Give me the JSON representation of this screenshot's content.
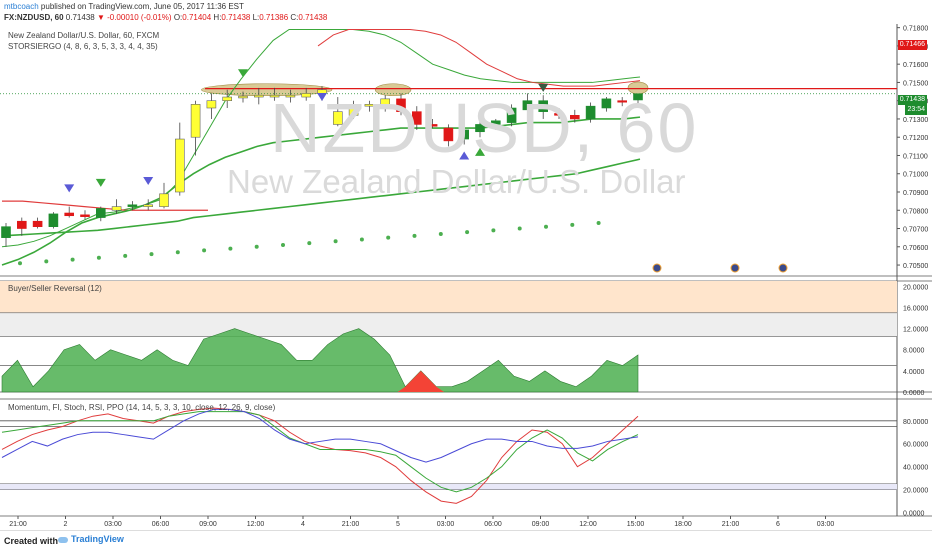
{
  "header": {
    "author": "mtbcoach",
    "published": "published on TradingView.com, June 05, 2017 11:36 EST",
    "symbol": "FX:NZDUSD, 60",
    "last": "0.71438",
    "change": "▼ -0.00010 (-0.01%)",
    "o_label": "O:",
    "o_val": "0.71404",
    "h_label": "H:",
    "h_val": "0.71438",
    "l_label": "L:",
    "l_val": "0.71386",
    "c_label": "C:",
    "c_val": "0.71438"
  },
  "legend": {
    "series": "New Zealand Dollar/U.S. Dollar, 60, FXCM",
    "indicator": "STORSIERGO (4, 8, 6, 3, 5, 3, 3, 4, 4, 35)"
  },
  "watermark": {
    "symbol": "NZDUSD, 60",
    "name": "New Zealand Dollar/U.S. Dollar"
  },
  "panes": {
    "reversal_title": "Buyer/Seller Reversal (12)",
    "momentum_title": "Momentum, FI, Stoch, RSI, PPO (14, 14, 5, 3, 3, 10, close, 12, 26, 9, close)"
  },
  "price_tags": {
    "high": "0.71466",
    "last": "0.71438",
    "timer": "23:54"
  },
  "footer": {
    "created_with": "Created with",
    "brand": "TradingView"
  },
  "colors": {
    "up": "#1e8c2e",
    "down": "#e01818",
    "doji_yellow": "#ffff33",
    "ma_red": "#e03c3c",
    "ma_green": "#3aa83a",
    "dots": "#4caf50",
    "highlight": "#c9b46a",
    "reversal_fill": "#4caf50",
    "reversal_neg": "#f44336",
    "band_orange": "#ffe5cc",
    "band_gray": "#eeeeee"
  },
  "chart_data": [
    {
      "type": "candlestick",
      "title": "",
      "x_ticks": [
        "21:00",
        "2",
        "03:00",
        "06:00",
        "09:00",
        "12:00",
        "4",
        "21:00",
        "5",
        "03:00",
        "06:00",
        "09:00",
        "12:00",
        "15:00",
        "18:00",
        "21:00",
        "6",
        "03:00"
      ],
      "y_ticks": [
        "0.71800",
        "0.71700",
        "0.71600",
        "0.71500",
        "0.71400",
        "0.71300",
        "0.71200",
        "0.71100",
        "0.71000",
        "0.70900",
        "0.70800",
        "0.70700",
        "0.70600",
        "0.70500"
      ],
      "ylim": [
        0.7044,
        0.7182
      ],
      "candles": [
        {
          "o": 0.7065,
          "h": 0.7073,
          "l": 0.706,
          "c": 0.7071,
          "color": "green"
        },
        {
          "o": 0.707,
          "h": 0.7076,
          "l": 0.7066,
          "c": 0.7074,
          "color": "red"
        },
        {
          "o": 0.7074,
          "h": 0.7076,
          "l": 0.707,
          "c": 0.7071,
          "color": "red"
        },
        {
          "o": 0.7071,
          "h": 0.7079,
          "l": 0.707,
          "c": 0.7078,
          "color": "green"
        },
        {
          "o": 0.70785,
          "h": 0.7082,
          "l": 0.7076,
          "c": 0.7077,
          "color": "red"
        },
        {
          "o": 0.70775,
          "h": 0.708,
          "l": 0.7075,
          "c": 0.70765,
          "color": "red"
        },
        {
          "o": 0.7076,
          "h": 0.7082,
          "l": 0.7074,
          "c": 0.7081,
          "color": "green"
        },
        {
          "o": 0.708,
          "h": 0.7086,
          "l": 0.7078,
          "c": 0.7082,
          "color": "yellow"
        },
        {
          "o": 0.7083,
          "h": 0.7085,
          "l": 0.708,
          "c": 0.7082,
          "color": "green"
        },
        {
          "o": 0.7082,
          "h": 0.7086,
          "l": 0.708,
          "c": 0.7083,
          "color": "yellow"
        },
        {
          "o": 0.7082,
          "h": 0.7095,
          "l": 0.7081,
          "c": 0.7089,
          "color": "yellow"
        },
        {
          "o": 0.709,
          "h": 0.7128,
          "l": 0.7088,
          "c": 0.7119,
          "color": "yellow"
        },
        {
          "o": 0.712,
          "h": 0.714,
          "l": 0.711,
          "c": 0.7138,
          "color": "yellow"
        },
        {
          "o": 0.7136,
          "h": 0.7144,
          "l": 0.713,
          "c": 0.714,
          "color": "yellow"
        },
        {
          "o": 0.714,
          "h": 0.7146,
          "l": 0.7136,
          "c": 0.7142,
          "color": "yellow"
        },
        {
          "o": 0.71415,
          "h": 0.7145,
          "l": 0.7139,
          "c": 0.71425,
          "color": "yellow"
        },
        {
          "o": 0.7142,
          "h": 0.7147,
          "l": 0.7138,
          "c": 0.7143,
          "color": "yellow"
        },
        {
          "o": 0.7143,
          "h": 0.7147,
          "l": 0.714,
          "c": 0.7142,
          "color": "yellow"
        },
        {
          "o": 0.7142,
          "h": 0.7146,
          "l": 0.7139,
          "c": 0.7143,
          "color": "yellow"
        },
        {
          "o": 0.7142,
          "h": 0.7147,
          "l": 0.714,
          "c": 0.7144,
          "color": "yellow"
        },
        {
          "o": 0.7144,
          "h": 0.7148,
          "l": 0.714,
          "c": 0.7146,
          "color": "yellow"
        },
        {
          "o": 0.7134,
          "h": 0.7142,
          "l": 0.7126,
          "c": 0.7127,
          "color": "yellow"
        },
        {
          "o": 0.7132,
          "h": 0.714,
          "l": 0.713,
          "c": 0.7137,
          "color": "yellow"
        },
        {
          "o": 0.7137,
          "h": 0.714,
          "l": 0.7134,
          "c": 0.7138,
          "color": "yellow"
        },
        {
          "o": 0.7136,
          "h": 0.7143,
          "l": 0.7134,
          "c": 0.7141,
          "color": "yellow"
        },
        {
          "o": 0.7141,
          "h": 0.7144,
          "l": 0.7132,
          "c": 0.7134,
          "color": "red"
        },
        {
          "o": 0.7134,
          "h": 0.7137,
          "l": 0.7124,
          "c": 0.7127,
          "color": "red"
        },
        {
          "o": 0.7127,
          "h": 0.713,
          "l": 0.7125,
          "c": 0.7126,
          "color": "red"
        },
        {
          "o": 0.7125,
          "h": 0.7127,
          "l": 0.7115,
          "c": 0.7118,
          "color": "red"
        },
        {
          "o": 0.7119,
          "h": 0.7126,
          "l": 0.7116,
          "c": 0.7124,
          "color": "green"
        },
        {
          "o": 0.7123,
          "h": 0.7129,
          "l": 0.712,
          "c": 0.7127,
          "color": "green"
        },
        {
          "o": 0.7127,
          "h": 0.713,
          "l": 0.7124,
          "c": 0.7129,
          "color": "green"
        },
        {
          "o": 0.7128,
          "h": 0.7138,
          "l": 0.7126,
          "c": 0.7136,
          "color": "green"
        },
        {
          "o": 0.7135,
          "h": 0.7144,
          "l": 0.7134,
          "c": 0.714,
          "color": "green"
        },
        {
          "o": 0.714,
          "h": 0.7143,
          "l": 0.713,
          "c": 0.7134,
          "color": "green"
        },
        {
          "o": 0.7133,
          "h": 0.7136,
          "l": 0.713,
          "c": 0.7132,
          "color": "red"
        },
        {
          "o": 0.7132,
          "h": 0.7135,
          "l": 0.7128,
          "c": 0.713,
          "color": "red"
        },
        {
          "o": 0.713,
          "h": 0.7139,
          "l": 0.7128,
          "c": 0.7137,
          "color": "green"
        },
        {
          "o": 0.7136,
          "h": 0.7142,
          "l": 0.7134,
          "c": 0.7141,
          "color": "green"
        },
        {
          "o": 0.714,
          "h": 0.7142,
          "l": 0.7137,
          "c": 0.714,
          "color": "red"
        },
        {
          "o": 0.71404,
          "h": 0.71438,
          "l": 0.71386,
          "c": 0.71438,
          "color": "green"
        }
      ],
      "horizontal_levels": [
        {
          "y": 0.71466,
          "color": "red"
        },
        {
          "y": 0.71438,
          "color": "green",
          "dotted": true
        }
      ],
      "red_ma": [
        0.7085,
        0.7085,
        0.7084,
        0.7083,
        0.7082,
        0.7081,
        0.708,
        0.708,
        0.708,
        0.708,
        0.708,
        0.708,
        0.7081,
        0.7082,
        0.7084,
        0.7088,
        0.7096,
        0.7106,
        0.712,
        0.7134,
        0.715,
        0.7162,
        0.717,
        0.7176,
        0.7179,
        0.7179,
        0.7179,
        0.7179,
        0.7179,
        0.7178,
        0.7176,
        0.7172,
        0.7166,
        0.716,
        0.7156,
        0.7152,
        0.715,
        0.7149,
        0.7148,
        0.7148,
        0.7148,
        0.7149,
        0.715,
        0.7151
      ],
      "upper_band": [
        0.706,
        0.7061,
        0.7063,
        0.7066,
        0.707,
        0.7074,
        0.7078,
        0.7079,
        0.7081,
        0.7083,
        0.7086,
        0.7095,
        0.711,
        0.7125,
        0.714,
        0.7152,
        0.7163,
        0.7173,
        0.7179,
        0.7179,
        0.7179,
        0.7179,
        0.7179,
        0.7178,
        0.7176,
        0.7172,
        0.7166,
        0.716,
        0.7157,
        0.7154,
        0.7152,
        0.7151,
        0.715,
        0.715,
        0.715,
        0.715,
        0.715,
        0.715,
        0.7151,
        0.7152,
        0.7153
      ],
      "mid_band": [
        0.705,
        0.7053,
        0.7057,
        0.7062,
        0.7068,
        0.7073,
        0.7076,
        0.7078,
        0.708,
        0.7083,
        0.7087,
        0.7094,
        0.71,
        0.7105,
        0.7109,
        0.7112,
        0.7115,
        0.7117,
        0.7118,
        0.7119,
        0.712,
        0.7121,
        0.7122,
        0.7123,
        0.7124,
        0.7125,
        0.7125,
        0.7125,
        0.7125,
        0.7125,
        0.7125,
        0.7126,
        0.7127,
        0.7128,
        0.7128,
        0.7128,
        0.7129,
        0.713,
        0.713,
        0.713,
        0.7131
      ],
      "lower_band": [
        0.7066,
        0.70665,
        0.7067,
        0.70675,
        0.7068,
        0.70685,
        0.7069,
        0.707,
        0.7071,
        0.7072,
        0.7073,
        0.7074,
        0.7076,
        0.7077,
        0.7078,
        0.7079,
        0.708,
        0.7081,
        0.7082,
        0.7083,
        0.7084,
        0.7085,
        0.7086,
        0.7087,
        0.7088,
        0.7089,
        0.709,
        0.7091,
        0.7092,
        0.7093,
        0.7094,
        0.7095,
        0.7096,
        0.7097,
        0.7098,
        0.7099,
        0.71,
        0.7102,
        0.7104,
        0.7106,
        0.7108
      ],
      "dots": [
        0.7051,
        0.7052,
        0.7053,
        0.7054,
        0.7055,
        0.7056,
        0.7057,
        0.7058,
        0.7059,
        0.706,
        0.7061,
        0.7062,
        0.7063,
        0.7064,
        0.7065,
        0.7066,
        0.7067,
        0.7068,
        0.7069,
        0.707,
        0.7071,
        0.7072,
        0.7073
      ],
      "markers": [
        {
          "i": 4,
          "y": 0.7092,
          "shape": "down",
          "color": "blue"
        },
        {
          "i": 6,
          "y": 0.7095,
          "shape": "down",
          "color": "green"
        },
        {
          "i": 9,
          "y": 0.7096,
          "shape": "down",
          "color": "blue"
        },
        {
          "i": 15,
          "y": 0.7155,
          "shape": "down",
          "color": "green"
        },
        {
          "i": 20,
          "y": 0.7142,
          "shape": "down",
          "color": "blue"
        },
        {
          "i": 29,
          "y": 0.711,
          "shape": "up",
          "color": "blue"
        },
        {
          "i": 30,
          "y": 0.7112,
          "shape": "up",
          "color": "green"
        },
        {
          "i": 34,
          "y": 0.7147,
          "shape": "down",
          "color": "gray"
        }
      ],
      "highlights": [
        {
          "i_from": 13,
          "i_to": 20,
          "y": 0.7146
        },
        {
          "i_from": 24,
          "i_to": 25,
          "y": 0.7146
        },
        {
          "i_from": 40,
          "i_to": 40,
          "y": 0.7147
        }
      ]
    },
    {
      "type": "area",
      "title": "Buyer/Seller Reversal (12)",
      "y_ticks": [
        "20.0000",
        "16.0000",
        "12.0000",
        "8.0000",
        "4.0000",
        "0.0000"
      ],
      "ylim": [
        0,
        21
      ],
      "values": [
        3,
        6,
        1,
        4,
        8,
        9,
        6,
        8,
        7,
        6,
        8,
        6,
        5,
        10,
        11,
        12,
        11,
        10,
        9,
        6,
        6,
        9,
        11,
        12,
        10,
        7,
        1,
        4,
        1,
        1,
        2,
        4,
        6,
        3,
        2,
        4,
        2,
        1,
        3,
        6,
        5,
        7
      ],
      "negative_ranges": [
        [
          26,
          28
        ]
      ],
      "bands": [
        {
          "from": 15,
          "to": 21,
          "color": "orange"
        },
        {
          "from": 10.5,
          "to": 15,
          "color": "gray"
        }
      ]
    },
    {
      "type": "line",
      "title": "Momentum, FI, Stoch, RSI, PPO (14, 14, 5, 3, 3, 10, close, 12, 26, 9, close)",
      "y_ticks": [
        "80.0000",
        "60.0000",
        "40.0000",
        "20.0000",
        "0.0000"
      ],
      "ylim": [
        -3,
        99
      ],
      "series": [
        {
          "color": "red",
          "values": [
            55,
            62,
            68,
            72,
            75,
            80,
            84,
            86,
            82,
            80,
            78,
            84,
            88,
            90,
            91,
            90,
            88,
            85,
            80,
            70,
            62,
            58,
            55,
            54,
            52,
            48,
            40,
            28,
            18,
            10,
            8,
            14,
            28,
            48,
            62,
            72,
            70,
            60,
            40,
            48,
            60,
            72,
            84
          ]
        },
        {
          "color": "green",
          "values": [
            70,
            72,
            74,
            76,
            78,
            80,
            80,
            80,
            80,
            80,
            80,
            84,
            86,
            88,
            88,
            88,
            88,
            85,
            75,
            65,
            60,
            55,
            55,
            55,
            55,
            53,
            50,
            40,
            30,
            22,
            18,
            22,
            30,
            40,
            55,
            65,
            72,
            65,
            52,
            45,
            55,
            62,
            68
          ]
        },
        {
          "color": "blue",
          "values": [
            48,
            55,
            62,
            58,
            64,
            68,
            70,
            70,
            68,
            66,
            64,
            72,
            80,
            86,
            90,
            90,
            88,
            82,
            72,
            64,
            60,
            62,
            64,
            64,
            62,
            60,
            54,
            48,
            44,
            48,
            54,
            60,
            64,
            64,
            62,
            62,
            58,
            56,
            56,
            58,
            62,
            64,
            66
          ]
        }
      ],
      "levels": [
        80,
        75,
        25,
        20
      ]
    }
  ]
}
